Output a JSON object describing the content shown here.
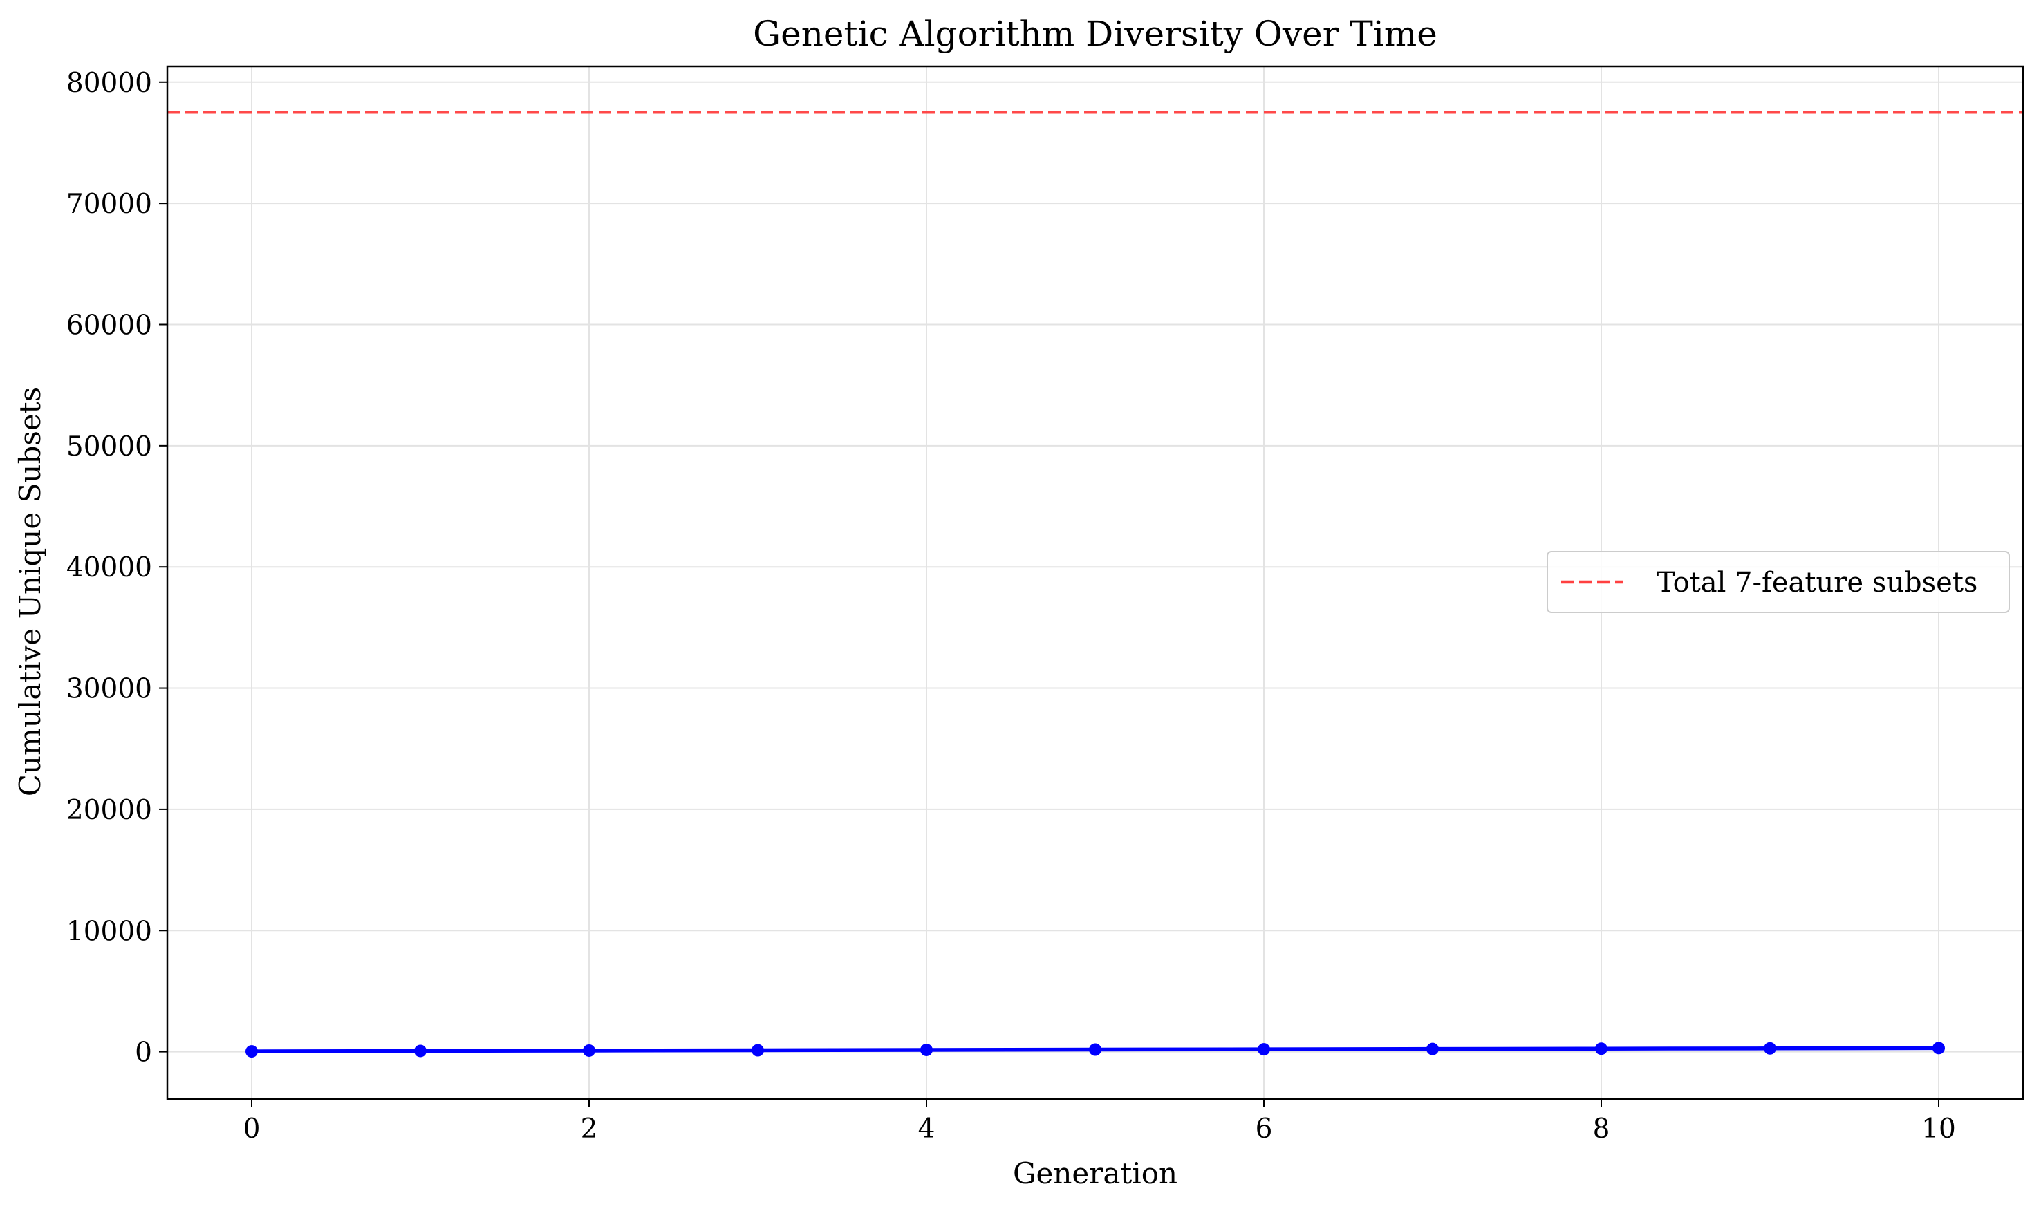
{
  "chart_data": {
    "type": "line",
    "title": "Genetic Algorithm Diversity Over Time",
    "xlabel": "Generation",
    "ylabel": "Cumulative Unique Subsets",
    "xlim": [
      -0.5,
      10.5
    ],
    "ylim": [
      -3900,
      81300
    ],
    "xticks": [
      0,
      2,
      4,
      6,
      8,
      10
    ],
    "yticks": [
      0,
      10000,
      20000,
      30000,
      40000,
      50000,
      60000,
      70000,
      80000
    ],
    "grid": true,
    "legend_position": "center-right",
    "series": [
      {
        "name": "",
        "color": "#0000ff",
        "marker": "circle",
        "x": [
          0,
          1,
          2,
          3,
          4,
          5,
          6,
          7,
          8,
          9,
          10
        ],
        "y": [
          30,
          65,
          95,
          120,
          150,
          175,
          200,
          225,
          250,
          275,
          300
        ]
      }
    ],
    "reference_lines": [
      {
        "name": "Total 7-feature subsets",
        "orientation": "horizontal",
        "value": 77520,
        "color": "#ff4040",
        "style": "dashed"
      }
    ]
  }
}
